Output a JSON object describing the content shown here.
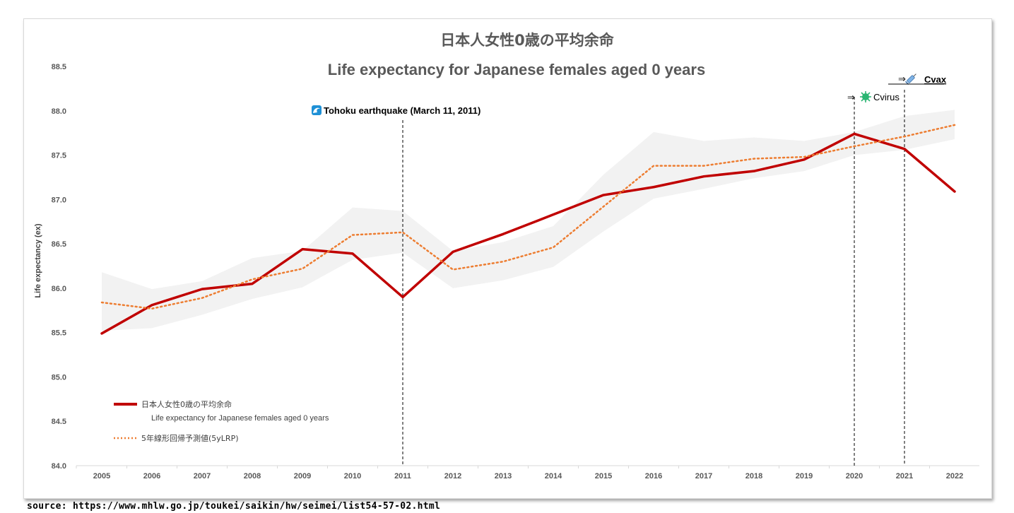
{
  "title_jp": "日本人女性0歳の平均余命",
  "title_en": "Life expectancy for Japanese females aged 0 years",
  "source": "source: https://www.mhlw.go.jp/toukei/saikin/hw/seimei/list54-57-02.html",
  "annotations": {
    "quake": "Tohoku earthquake (March 11, 2011)",
    "cvirus_arrow": "⇒",
    "cvirus": "Cvirus",
    "cvax_arrow": "⇒",
    "cvax": "Cvax",
    "quake_icon": "wave-icon",
    "cvirus_icon": "virus-icon",
    "cvax_icon": "syringe-icon"
  },
  "legend": {
    "actual_jp": "日本人女性0歳の平均余命",
    "actual_en": "Life expectancy for Japanese females aged 0 years",
    "lrp": "5年線形回帰予測値(5yLRP)"
  },
  "chart_data": {
    "type": "line",
    "title": "Life expectancy for Japanese females aged 0 years",
    "ylabel": "Life expectancy (ex)",
    "xlabel": "",
    "ylim": [
      84.0,
      88.5
    ],
    "ytick_step": 0.5,
    "ytick_labels": [
      "84.0",
      "84.5",
      "85.0",
      "85.5",
      "86.0",
      "86.5",
      "87.0",
      "87.5",
      "88.0",
      "88.5"
    ],
    "x": [
      2005,
      2006,
      2007,
      2008,
      2009,
      2010,
      2011,
      2012,
      2013,
      2014,
      2015,
      2016,
      2017,
      2018,
      2019,
      2020,
      2021,
      2022
    ],
    "series": [
      {
        "name": "日本人女性0歳の平均余命",
        "color": "#c00000",
        "style": "solid",
        "values": [
          85.49,
          85.81,
          85.99,
          86.05,
          86.44,
          86.39,
          85.9,
          86.41,
          86.61,
          86.83,
          87.05,
          87.14,
          87.26,
          87.32,
          87.45,
          87.74,
          87.57,
          87.09
        ]
      },
      {
        "name": "5年線形回帰予測値(5yLRP)",
        "color": "#ed7d31",
        "style": "dotted",
        "values": [
          85.84,
          85.77,
          85.89,
          86.1,
          86.22,
          86.6,
          86.63,
          86.21,
          86.3,
          86.46,
          86.92,
          87.38,
          87.38,
          87.46,
          87.48,
          87.6,
          87.71,
          87.84
        ]
      }
    ],
    "band": {
      "color": "#f2f2f2",
      "upper": [
        86.18,
        85.99,
        86.08,
        86.34,
        86.42,
        86.91,
        86.87,
        86.42,
        86.52,
        86.7,
        87.28,
        87.76,
        87.66,
        87.7,
        87.66,
        87.76,
        87.94,
        88.01
      ],
      "lower": [
        85.52,
        85.55,
        85.7,
        85.88,
        86.01,
        86.32,
        86.4,
        86.0,
        86.09,
        86.24,
        86.64,
        87.01,
        87.12,
        87.24,
        87.32,
        87.5,
        87.56,
        87.68
      ]
    },
    "events": [
      {
        "x": 2011,
        "label": "Tohoku earthquake (March 11, 2011)"
      },
      {
        "x": 2020,
        "label": "Cvirus"
      },
      {
        "x": 2021,
        "label": "Cvax"
      }
    ],
    "grid": false,
    "legend_position": "bottom-left"
  }
}
